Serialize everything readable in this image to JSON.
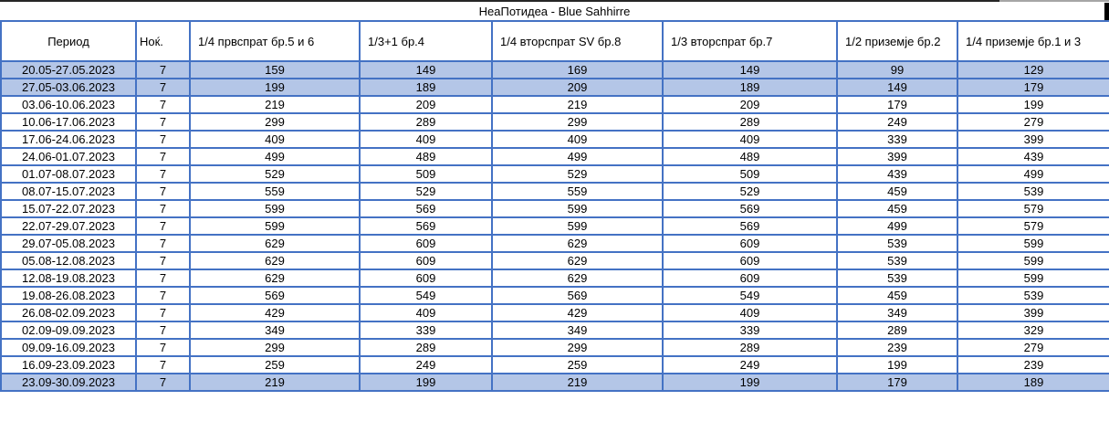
{
  "table": {
    "title": "НеаПотидеа - Blue Sahhirre",
    "columns": [
      "Период",
      "Ноќ.",
      "1/4 првспрат бр.5 и 6",
      "1/3+1 бр.4",
      "1/4 вторспрат SV бр.8",
      "1/3 вторспрат бр.7",
      "1/2 приземје бр.2",
      "1/4 приземје бр.1 и 3"
    ],
    "rows": [
      {
        "period": "20.05-27.05.2023",
        "nights": "7",
        "prices": [
          "159",
          "149",
          "169",
          "149",
          "99",
          "129"
        ],
        "highlighted": true
      },
      {
        "period": "27.05-03.06.2023",
        "nights": "7",
        "prices": [
          "199",
          "189",
          "209",
          "189",
          "149",
          "179"
        ],
        "highlighted": true
      },
      {
        "period": "03.06-10.06.2023",
        "nights": "7",
        "prices": [
          "219",
          "209",
          "219",
          "209",
          "179",
          "199"
        ],
        "highlighted": false
      },
      {
        "period": "10.06-17.06.2023",
        "nights": "7",
        "prices": [
          "299",
          "289",
          "299",
          "289",
          "249",
          "279"
        ],
        "highlighted": false
      },
      {
        "period": "17.06-24.06.2023",
        "nights": "7",
        "prices": [
          "409",
          "409",
          "409",
          "409",
          "339",
          "399"
        ],
        "highlighted": false
      },
      {
        "period": "24.06-01.07.2023",
        "nights": "7",
        "prices": [
          "499",
          "489",
          "499",
          "489",
          "399",
          "439"
        ],
        "highlighted": false
      },
      {
        "period": "01.07-08.07.2023",
        "nights": "7",
        "prices": [
          "529",
          "509",
          "529",
          "509",
          "439",
          "499"
        ],
        "highlighted": false
      },
      {
        "period": "08.07-15.07.2023",
        "nights": "7",
        "prices": [
          "559",
          "529",
          "559",
          "529",
          "459",
          "539"
        ],
        "highlighted": false
      },
      {
        "period": "15.07-22.07.2023",
        "nights": "7",
        "prices": [
          "599",
          "569",
          "599",
          "569",
          "459",
          "579"
        ],
        "highlighted": false
      },
      {
        "period": "22.07-29.07.2023",
        "nights": "7",
        "prices": [
          "599",
          "569",
          "599",
          "569",
          "499",
          "579"
        ],
        "highlighted": false
      },
      {
        "period": "29.07-05.08.2023",
        "nights": "7",
        "prices": [
          "629",
          "609",
          "629",
          "609",
          "539",
          "599"
        ],
        "highlighted": false
      },
      {
        "period": "05.08-12.08.2023",
        "nights": "7",
        "prices": [
          "629",
          "609",
          "629",
          "609",
          "539",
          "599"
        ],
        "highlighted": false
      },
      {
        "period": "12.08-19.08.2023",
        "nights": "7",
        "prices": [
          "629",
          "609",
          "629",
          "609",
          "539",
          "599"
        ],
        "highlighted": false
      },
      {
        "period": "19.08-26.08.2023",
        "nights": "7",
        "prices": [
          "569",
          "549",
          "569",
          "549",
          "459",
          "539"
        ],
        "highlighted": false
      },
      {
        "period": "26.08-02.09.2023",
        "nights": "7",
        "prices": [
          "429",
          "409",
          "429",
          "409",
          "349",
          "399"
        ],
        "highlighted": false
      },
      {
        "period": "02.09-09.09.2023",
        "nights": "7",
        "prices": [
          "349",
          "339",
          "349",
          "339",
          "289",
          "329"
        ],
        "highlighted": false
      },
      {
        "period": "09.09-16.09.2023",
        "nights": "7",
        "prices": [
          "299",
          "289",
          "299",
          "289",
          "239",
          "279"
        ],
        "highlighted": false
      },
      {
        "period": "16.09-23.09.2023",
        "nights": "7",
        "prices": [
          "259",
          "249",
          "259",
          "249",
          "199",
          "239"
        ],
        "highlighted": false
      },
      {
        "period": "23.09-30.09.2023",
        "nights": "7",
        "prices": [
          "219",
          "199",
          "219",
          "199",
          "179",
          "189"
        ],
        "highlighted": true
      }
    ]
  },
  "colors": {
    "border_blue": "#4472c4",
    "highlight_row": "#b4c6e7",
    "text": "#000000"
  }
}
